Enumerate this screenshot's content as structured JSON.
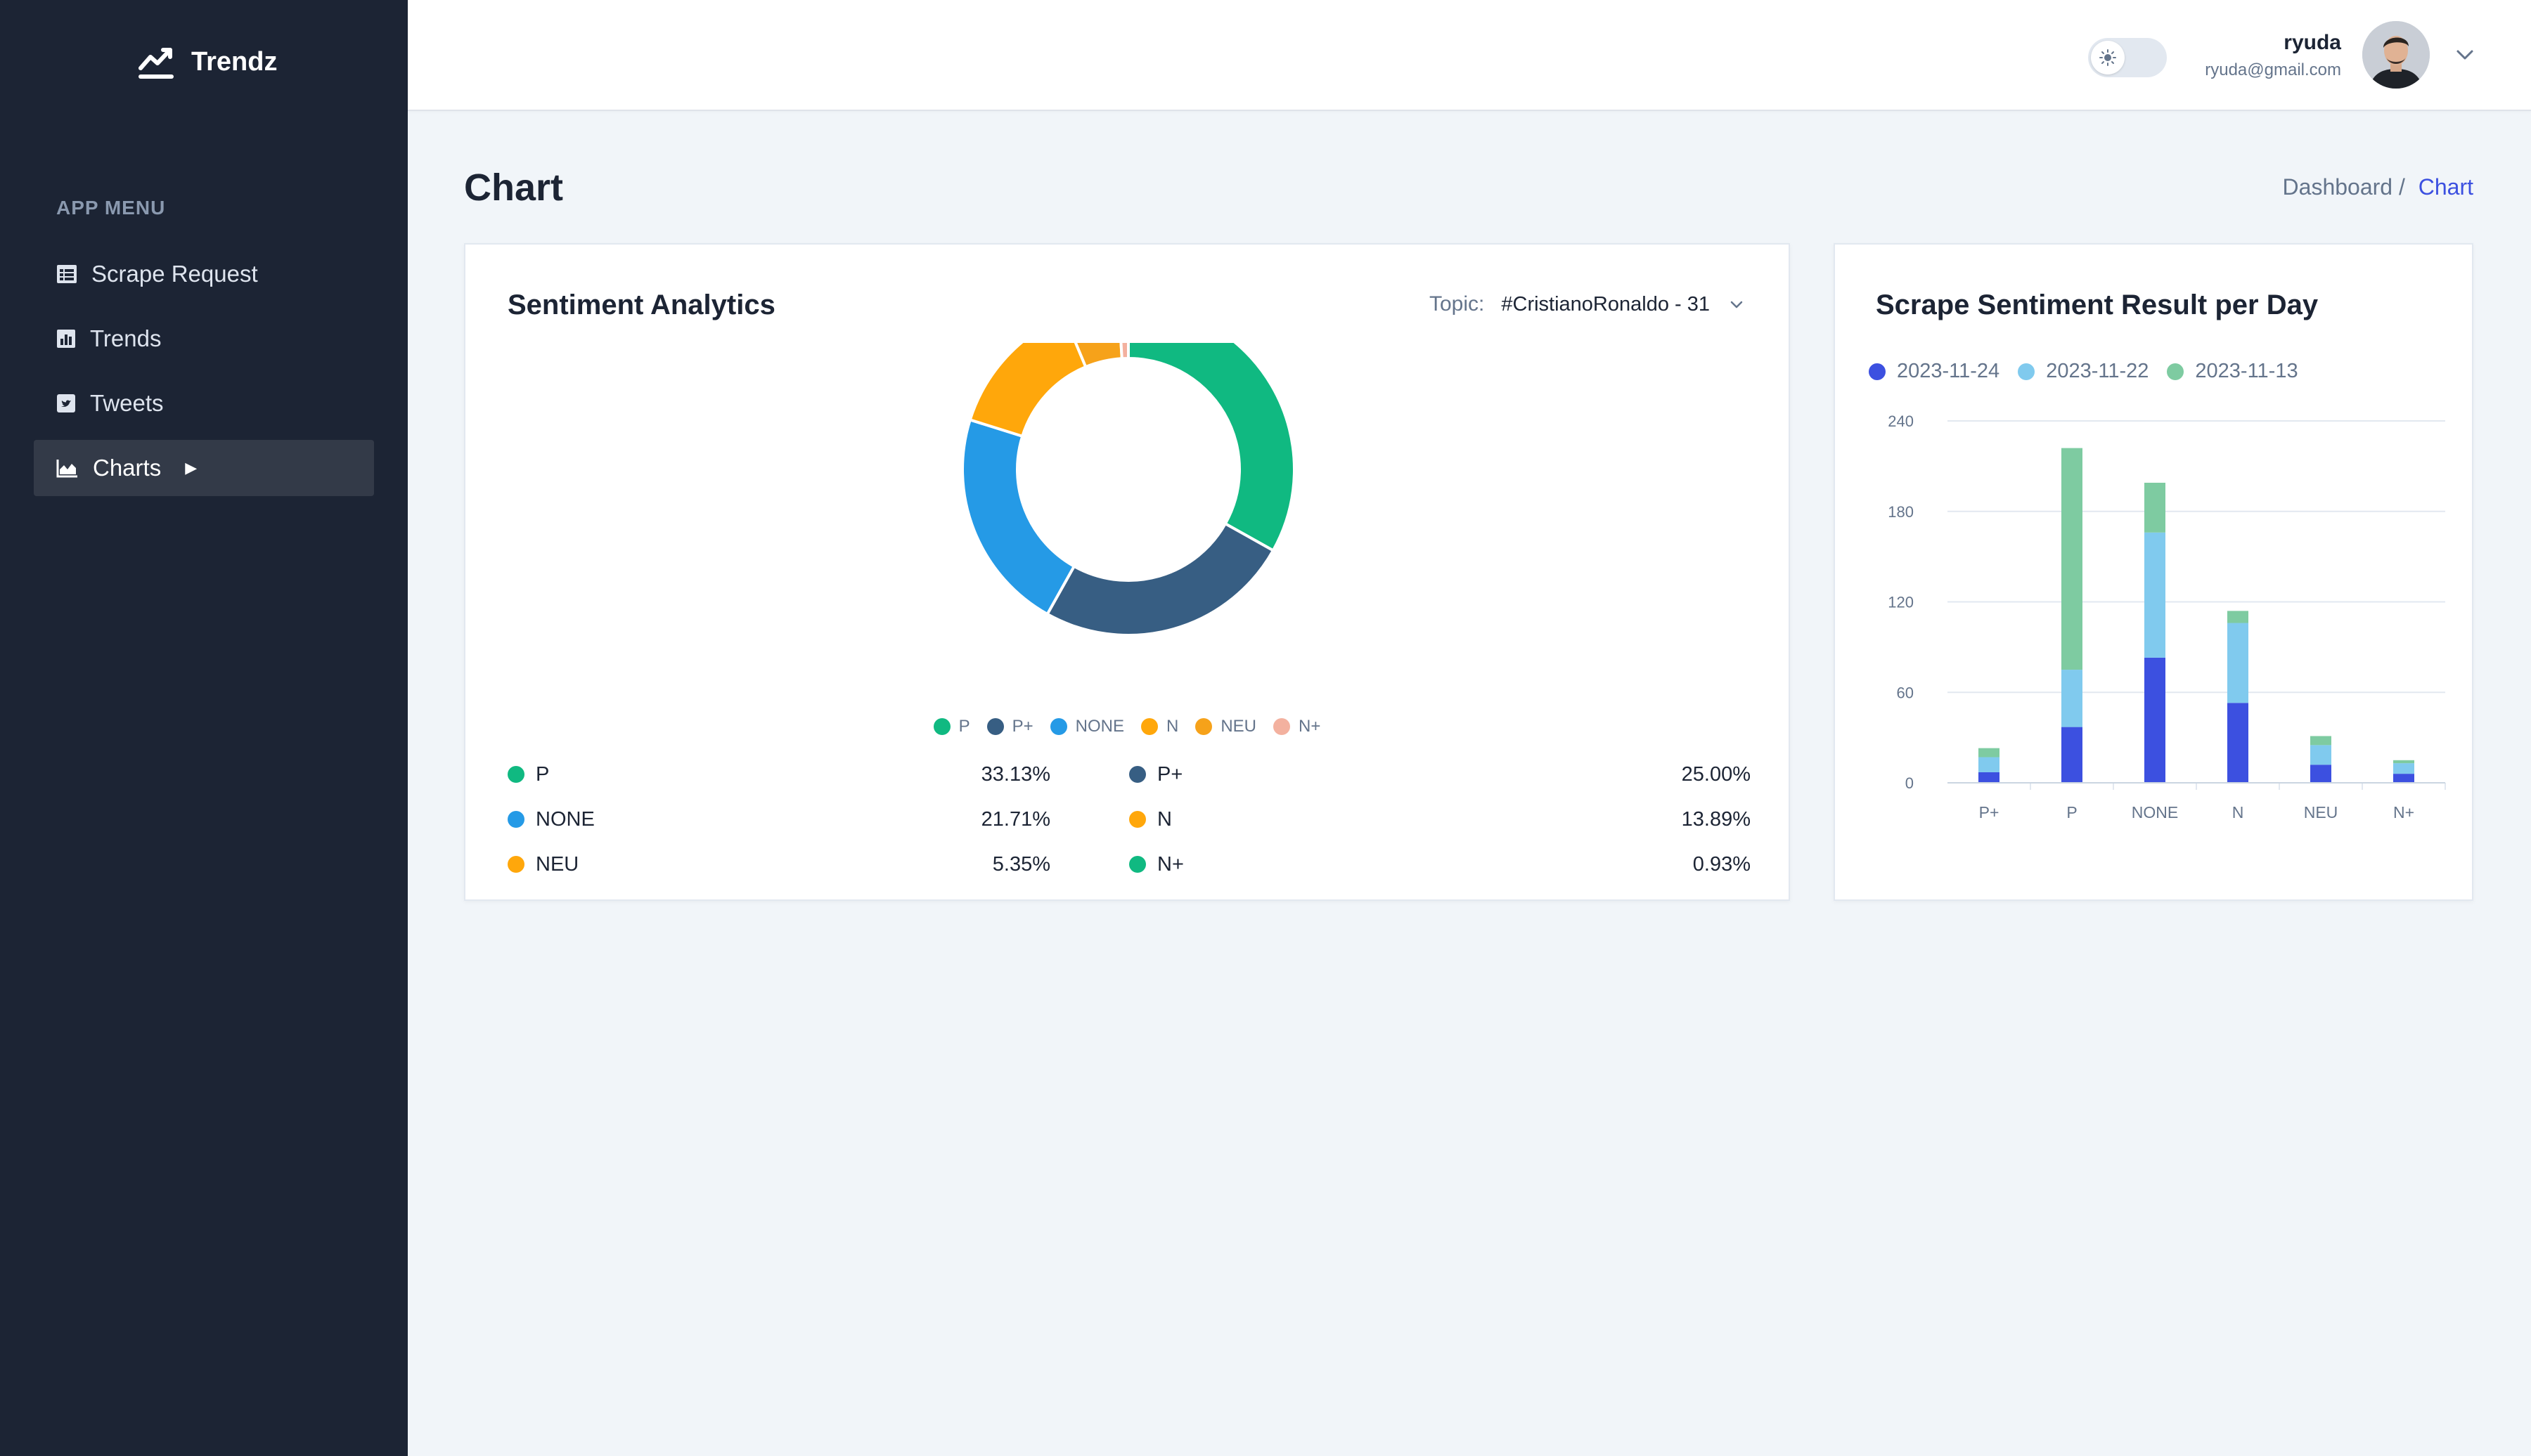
{
  "brand": {
    "name": "Trendz",
    "icon": "trend-line-icon"
  },
  "sidebar": {
    "heading": "APP MENU",
    "items": [
      {
        "label": "Scrape Request",
        "icon": "table-icon"
      },
      {
        "label": "Trends",
        "icon": "bar-chart-icon"
      },
      {
        "label": "Tweets",
        "icon": "twitter-icon"
      },
      {
        "label": "Charts",
        "icon": "area-chart-icon",
        "active": true
      }
    ]
  },
  "header": {
    "theme_toggle": "light",
    "user": {
      "name": "ryuda",
      "email": "ryuda@gmail.com"
    }
  },
  "page": {
    "title": "Chart",
    "breadcrumb": {
      "parent": "Dashboard /",
      "current": "Chart"
    }
  },
  "sentiment_card": {
    "title": "Sentiment Analytics",
    "topic_label": "Topic:",
    "topic_value": "#CristianoRonaldo - 31",
    "legend": [
      {
        "label": "P",
        "color": "#10b981"
      },
      {
        "label": "P+",
        "color": "#375e83"
      },
      {
        "label": "NONE",
        "color": "#259ae6"
      },
      {
        "label": "N",
        "color": "#ffa70b"
      },
      {
        "label": "NEU",
        "color": "#f6a21a"
      },
      {
        "label": "N+",
        "color": "#f3b19f"
      }
    ],
    "stats": [
      [
        {
          "label": "P",
          "value": "33.13%",
          "color": "#10b981"
        },
        {
          "label": "P+",
          "value": "25.00%",
          "color": "#375e83"
        }
      ],
      [
        {
          "label": "NONE",
          "value": "21.71%",
          "color": "#259ae6"
        },
        {
          "label": "N",
          "value": "13.89%",
          "color": "#ffa70b"
        }
      ],
      [
        {
          "label": "NEU",
          "value": "5.35%",
          "color": "#ffa70b"
        },
        {
          "label": "N+",
          "value": "0.93%",
          "color": "#10b981"
        }
      ]
    ]
  },
  "bar_card": {
    "title": "Scrape Sentiment Result per Day"
  },
  "chart_data": [
    {
      "type": "pie",
      "categories": [
        "P",
        "P+",
        "NONE",
        "N",
        "NEU",
        "N+"
      ],
      "values": [
        33.13,
        25.0,
        21.71,
        13.89,
        5.35,
        0.93
      ],
      "colors": [
        "#10b981",
        "#375e83",
        "#259ae6",
        "#ffa70b",
        "#f6a21a",
        "#f3b19f"
      ],
      "legend_position": "bottom"
    },
    {
      "type": "bar",
      "stacked": true,
      "categories": [
        "P+",
        "P",
        "NONE",
        "N",
        "NEU",
        "N+"
      ],
      "series": [
        {
          "name": "2023-11-24",
          "color": "#3c50e0",
          "values": [
            7,
            37,
            83,
            53,
            12,
            6
          ]
        },
        {
          "name": "2023-11-22",
          "color": "#80caee",
          "values": [
            10,
            38,
            83,
            53,
            13,
            7
          ]
        },
        {
          "name": "2023-11-13",
          "color": "#7ecba1",
          "values": [
            6,
            147,
            33,
            8,
            6,
            2
          ]
        }
      ],
      "y_ticks": [
        "0",
        "60",
        "120",
        "180",
        "240"
      ],
      "ylim": [
        0,
        240
      ],
      "grid": true,
      "legend_position": "top-left"
    }
  ]
}
